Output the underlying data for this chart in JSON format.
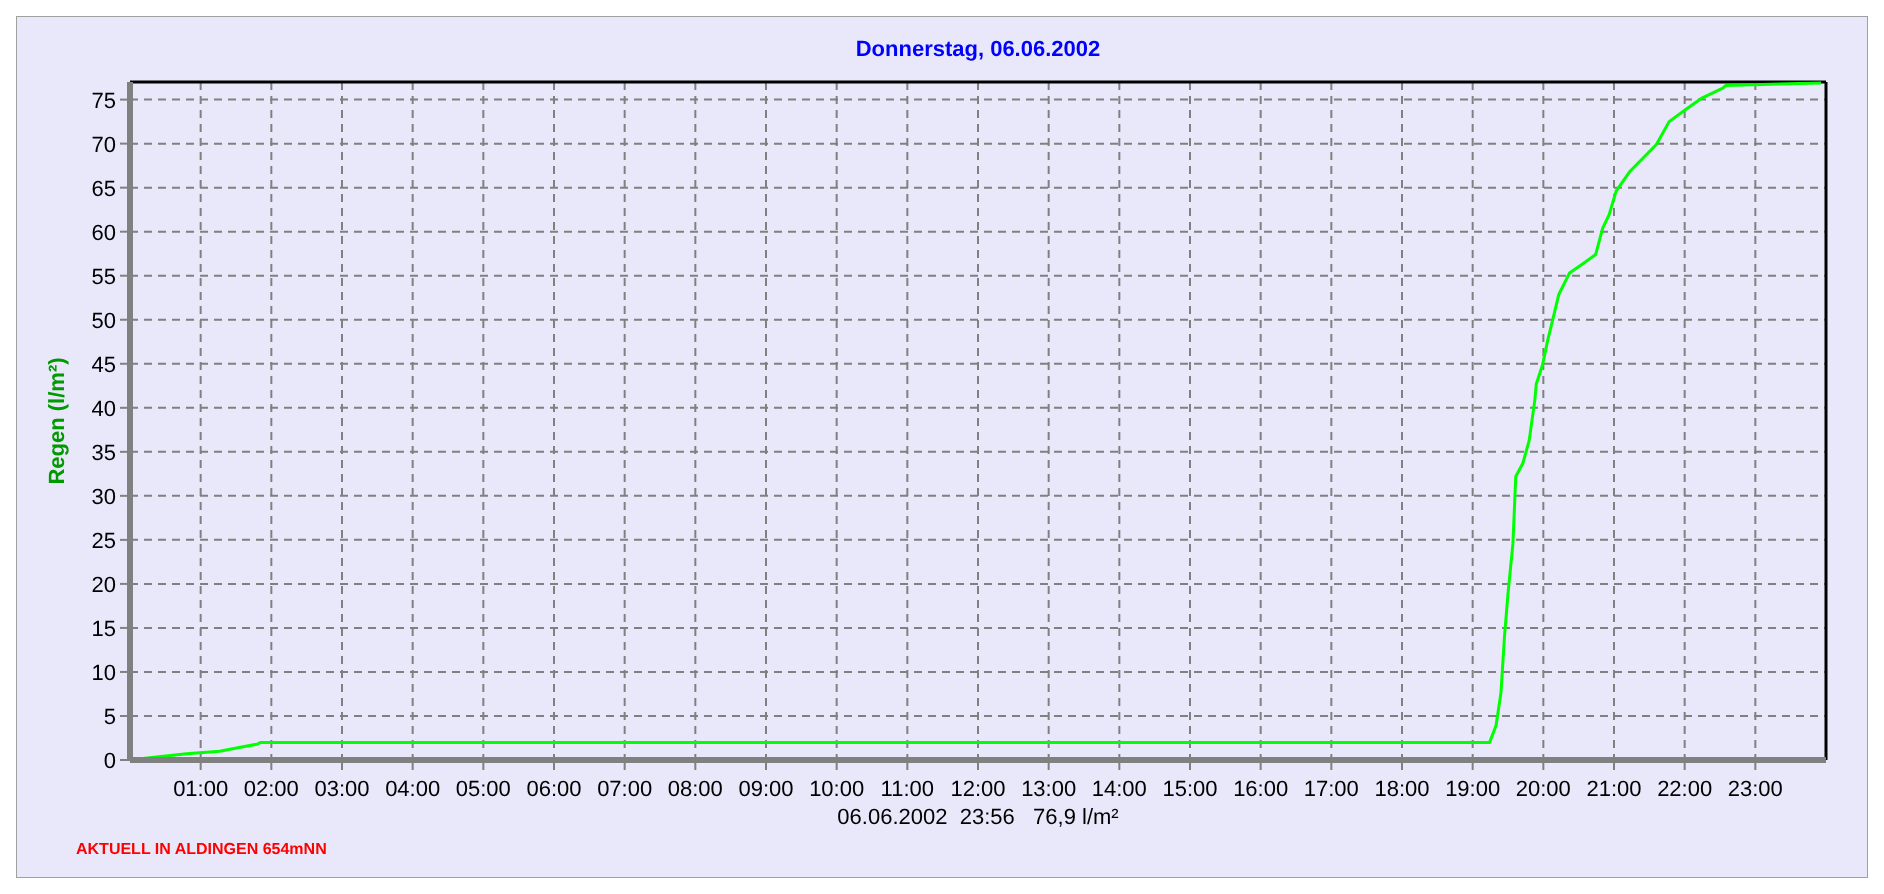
{
  "chart_data": {
    "type": "line",
    "title": "Donnerstag, 06.06.2002",
    "ylabel": "Regen (l/m²)",
    "annotations": [
      "06.06.2002  23:56   76,9 l/m²",
      "AKTUELL IN ALDINGEN 654mNN"
    ],
    "xlim": [
      0,
      24
    ],
    "ylim": [
      0,
      77
    ],
    "xticks": [
      {
        "value": 1,
        "label": "01:00"
      },
      {
        "value": 2,
        "label": "02:00"
      },
      {
        "value": 3,
        "label": "03:00"
      },
      {
        "value": 4,
        "label": "04:00"
      },
      {
        "value": 5,
        "label": "05:00"
      },
      {
        "value": 6,
        "label": "06:00"
      },
      {
        "value": 7,
        "label": "07:00"
      },
      {
        "value": 8,
        "label": "08:00"
      },
      {
        "value": 9,
        "label": "09:00"
      },
      {
        "value": 10,
        "label": "10:00"
      },
      {
        "value": 11,
        "label": "11:00"
      },
      {
        "value": 12,
        "label": "12:00"
      },
      {
        "value": 13,
        "label": "13:00"
      },
      {
        "value": 14,
        "label": "14:00"
      },
      {
        "value": 15,
        "label": "15:00"
      },
      {
        "value": 16,
        "label": "16:00"
      },
      {
        "value": 17,
        "label": "17:00"
      },
      {
        "value": 18,
        "label": "18:00"
      },
      {
        "value": 19,
        "label": "19:00"
      },
      {
        "value": 20,
        "label": "20:00"
      },
      {
        "value": 21,
        "label": "21:00"
      },
      {
        "value": 22,
        "label": "22:00"
      },
      {
        "value": 23,
        "label": "23:00"
      }
    ],
    "yticks": [
      0,
      5,
      10,
      15,
      20,
      25,
      30,
      35,
      40,
      45,
      50,
      55,
      60,
      65,
      70,
      75
    ],
    "grid": true,
    "marker": "none",
    "line_style": "solid",
    "series": [
      {
        "color": "#00ff00",
        "x": [
          0,
          0.34,
          0.8,
          1.27,
          1.47,
          1.8,
          1.85,
          19.24,
          19.33,
          19.4,
          19.45,
          19.5,
          19.57,
          19.61,
          19.71,
          19.8,
          19.88,
          19.9,
          19.99,
          20.06,
          20.13,
          20.22,
          20.37,
          20.55,
          20.74,
          20.84,
          20.93,
          21.03,
          21.22,
          21.6,
          21.78,
          22.02,
          22.25,
          22.54,
          22.58,
          23.93
        ],
        "values": [
          0,
          0.3,
          0.7,
          1.0,
          1.3,
          1.8,
          2.0,
          2.0,
          3.9,
          7.6,
          14.0,
          18.9,
          24.6,
          32.2,
          33.7,
          36.3,
          40.9,
          42.7,
          44.9,
          47.6,
          49.9,
          52.9,
          55.3,
          56.3,
          57.4,
          60.4,
          61.9,
          64.6,
          66.8,
          69.9,
          72.5,
          73.9,
          75.2,
          76.3,
          76.6,
          76.9
        ]
      }
    ]
  }
}
